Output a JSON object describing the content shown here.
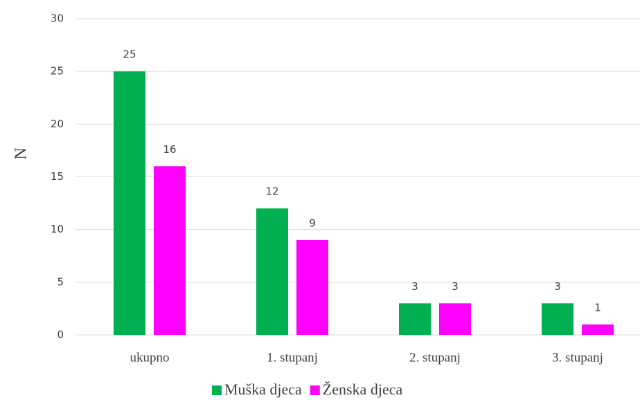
{
  "chart_data": {
    "type": "bar",
    "y_label": "N",
    "categories": [
      "ukupno",
      "1. stupanj",
      "2. stupanj",
      "3. stupanj"
    ],
    "series": [
      {
        "name": "Muška djeca",
        "color": "#00b050",
        "values": [
          25,
          12,
          3,
          3
        ]
      },
      {
        "name": "Ženska djeca",
        "color": "#ff00ff",
        "values": [
          16,
          9,
          3,
          1
        ]
      }
    ],
    "ylim": [
      0,
      30
    ],
    "yticks": [
      0,
      5,
      10,
      15,
      20,
      25,
      30
    ],
    "grid": true,
    "legend": "bottom"
  }
}
